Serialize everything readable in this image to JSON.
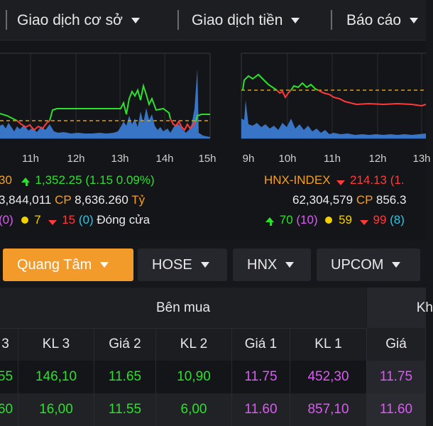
{
  "nav": {
    "items": [
      {
        "label": "Giao dịch cơ sở"
      },
      {
        "label": "Giao dịch tiền"
      },
      {
        "label": "Báo cáo"
      }
    ]
  },
  "charts": {
    "left_time_labels": [
      "11h",
      "12h",
      "13h",
      "14h",
      "15h"
    ],
    "right_time_labels": [
      "9h",
      "10h",
      "11h",
      "12h",
      "13h"
    ],
    "colors": {
      "up": "#2de02d",
      "down": "#ff3a3a",
      "ref": "#d8a11c",
      "volume": "#3d7fd9"
    }
  },
  "vnindex": {
    "prev_fragment": "30",
    "value": "1,352.25",
    "change": "(1.15 0.09%)",
    "volume_fragment": "3,844,011",
    "cp_label": "CP",
    "cp_value": "8,636.260",
    "cp_unit": "Tỷ",
    "breadth": {
      "a_fragment": "(0)",
      "ref_count": "7",
      "down_count": "15",
      "down_paren": "(0)",
      "status": "Đóng cửa"
    }
  },
  "hnx": {
    "name": "HNX-INDEX",
    "value": "214.13 (1.",
    "volume": "62,304,579",
    "cp_label": "CP",
    "cp_value": "856.3",
    "breadth": {
      "up_count": "70",
      "up_paren": "(10)",
      "ref_count": "59",
      "down_count": "99",
      "down_paren": "(8)"
    }
  },
  "tabs": [
    {
      "label": "Quang Tâm"
    },
    {
      "label": "HOSE"
    },
    {
      "label": "HNX"
    },
    {
      "label": "UPCOM"
    }
  ],
  "table": {
    "group_buy": "Bên mua",
    "group_sell_fragment": "Kh",
    "headers": [
      "3",
      "KL 3",
      "Giá 2",
      "KL 2",
      "Giá 1",
      "KL 1",
      "Giá"
    ],
    "rows": [
      [
        "55",
        "146,10",
        "11.65",
        "10,90",
        "11.75",
        "452,30",
        "11.75"
      ],
      [
        "60",
        "16,00",
        "11.55",
        "6,00",
        "11.60",
        "857,10",
        "11.60"
      ]
    ]
  }
}
